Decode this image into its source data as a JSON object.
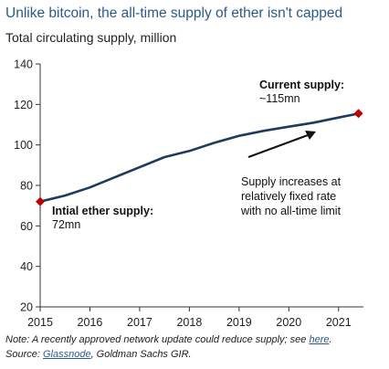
{
  "title": "Unlike bitcoin, the all-time supply of ether isn't capped",
  "subtitle": "Total circulating supply, million",
  "chart_data": {
    "type": "line",
    "xlim": [
      2015,
      2021.5
    ],
    "ylim": [
      20,
      140
    ],
    "x_ticks": [
      2015,
      2016,
      2017,
      2018,
      2019,
      2020,
      2021
    ],
    "y_ticks": [
      20,
      40,
      60,
      80,
      100,
      120,
      140
    ],
    "grid": false,
    "series": [
      {
        "color": "#1f3b5c",
        "x": [
          2015.0,
          2015.5,
          2016.0,
          2016.5,
          2017.0,
          2017.5,
          2018.0,
          2018.5,
          2019.0,
          2019.5,
          2020.0,
          2020.5,
          2021.0,
          2021.4
        ],
        "y": [
          72,
          75,
          79,
          84,
          89,
          94,
          97,
          101,
          104.5,
          107,
          109,
          111,
          113.5,
          115.5
        ]
      }
    ],
    "markers": [
      {
        "x": 2015.0,
        "y": 72,
        "color": "#c00000"
      },
      {
        "x": 2021.4,
        "y": 115.5,
        "color": "#c00000"
      }
    ],
    "annotations": {
      "current_label": "Current supply:",
      "current_value": "~115mn",
      "initial_label": "Intial ether supply:",
      "initial_value": "72mn",
      "trend_line1": "Supply increases at",
      "trend_line2": "relatively fixed rate",
      "trend_line3": "with no all-time limit"
    }
  },
  "footer": {
    "note_text": "Note: A recently approved network update could reduce supply; see ",
    "note_link": "here",
    "note_end": ".",
    "source_text": "Source: ",
    "source_link": "Glassnode",
    "source_end": ", Goldman Sachs GIR."
  }
}
